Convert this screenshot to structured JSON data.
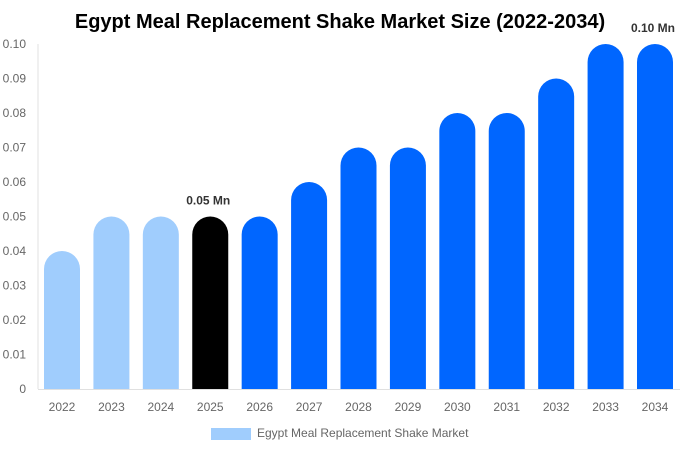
{
  "chart_data": {
    "type": "bar",
    "title": "Egypt Meal Replacement Shake Market Size (2022-2034)",
    "xlabel": "",
    "ylabel": "",
    "ylim": [
      0,
      0.1
    ],
    "yticks": [
      "0",
      "0.01",
      "0.02",
      "0.03",
      "0.04",
      "0.05",
      "0.06",
      "0.07",
      "0.08",
      "0.09",
      "0.10"
    ],
    "categories": [
      "2022",
      "2023",
      "2024",
      "2025",
      "2026",
      "2027",
      "2028",
      "2029",
      "2030",
      "2031",
      "2032",
      "2033",
      "2034"
    ],
    "series": [
      {
        "name": "Egypt Meal Replacement Shake Market",
        "values": [
          0.04,
          0.05,
          0.05,
          0.05,
          0.05,
          0.06,
          0.07,
          0.07,
          0.08,
          0.08,
          0.09,
          0.1,
          0.1
        ]
      }
    ],
    "bar_colors": [
      "#a0cdfd",
      "#a0cdfd",
      "#a0cdfd",
      "#000000",
      "#0066ff",
      "#0066ff",
      "#0066ff",
      "#0066ff",
      "#0066ff",
      "#0066ff",
      "#0066ff",
      "#0066ff",
      "#0066ff"
    ],
    "legend_color": "#a0cdfd",
    "data_labels": [
      {
        "index": 3,
        "text": "0.05 Mn"
      },
      {
        "index": 12,
        "text": "0.10 Mn"
      }
    ],
    "legend_position": "bottom",
    "grid": false
  }
}
